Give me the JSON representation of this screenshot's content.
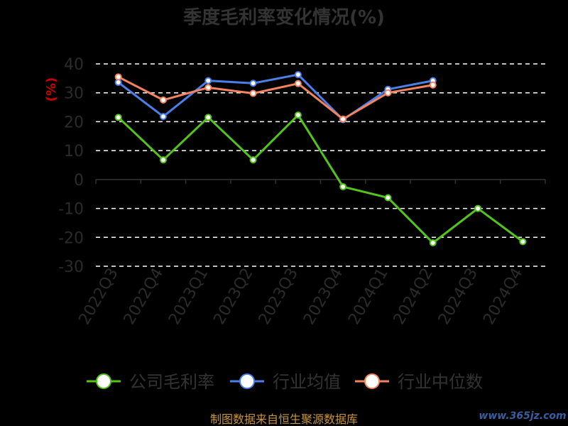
{
  "chart_data": {
    "type": "line",
    "title": "季度毛利率变化情况(%)",
    "ylabel": "(%)",
    "xlabel": "",
    "categories": [
      "2022Q3",
      "2022Q4",
      "2023Q1",
      "2023Q2",
      "2023Q3",
      "2023Q4",
      "2024Q1",
      "2024Q2",
      "2024Q3",
      "2024Q4"
    ],
    "yticks": [
      40,
      30,
      20,
      10,
      0,
      -10,
      -20,
      -30
    ],
    "ylim": [
      -30,
      40
    ],
    "grid": true,
    "legend_position": "bottom",
    "series": [
      {
        "name": "公司毛利率",
        "color": "#52c41a",
        "values": [
          21.5,
          6.8,
          21.5,
          6.8,
          22.3,
          -2.5,
          -6.3,
          -21.9,
          -10.0,
          -21.5
        ]
      },
      {
        "name": "行业均值",
        "color": "#4c7fe8",
        "values": [
          33.6,
          21.8,
          34.2,
          33.3,
          36.3,
          20.7,
          31.2,
          34.2,
          null,
          null
        ]
      },
      {
        "name": "行业中位数",
        "color": "#f4845f",
        "values": [
          35.5,
          27.5,
          31.8,
          29.8,
          33.2,
          20.9,
          30.0,
          32.7,
          null,
          null
        ]
      }
    ]
  },
  "legend": {
    "items": [
      {
        "label": "公司毛利率",
        "color": "#52c41a"
      },
      {
        "label": "行业均值",
        "color": "#4c7fe8"
      },
      {
        "label": "行业中位数",
        "color": "#f4845f"
      }
    ]
  },
  "footer": {
    "source": "制图数据来自恒生聚源数据库",
    "watermark": "www.365jz.com"
  }
}
